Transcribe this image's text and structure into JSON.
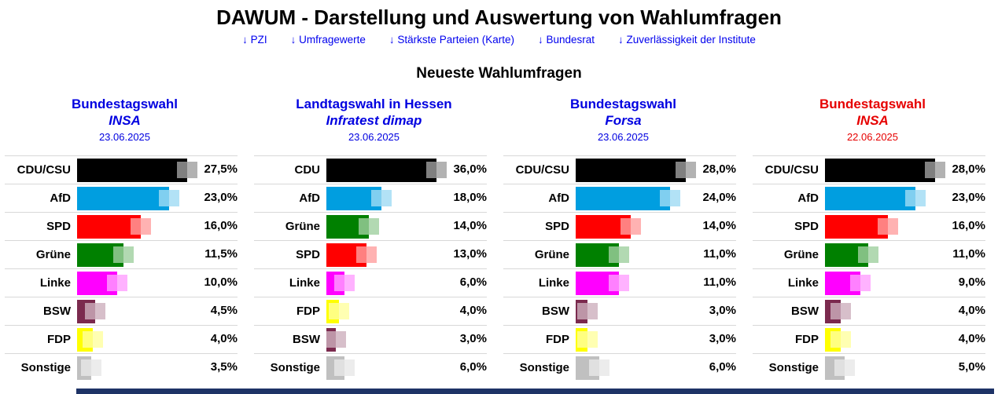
{
  "page": {
    "title": "DAWUM - Darstellung und Auswertung von Wahlumfragen",
    "nav_links": [
      "↓ PZI",
      "↓ Umfragewerte",
      "↓ Stärkste Parteien (Karte)",
      "↓ Bundesrat",
      "↓ Zuverlässigkeit der Institute"
    ],
    "section_title": "Neueste Wahlumfragen"
  },
  "colors": {
    "link_blue": "#0000EE",
    "heading_blue": "#0000E0",
    "heading_red": "#E60000",
    "row_separator": "#d8d8d8",
    "bottom_strip": "#1e3366"
  },
  "chart_data": [
    {
      "type": "bar",
      "title": "Bundestagswahl",
      "institute": "INSA",
      "date": "23.06.2025",
      "title_color": "#0000E0",
      "categories": [
        "CDU/CSU",
        "AfD",
        "SPD",
        "Grüne",
        "Linke",
        "BSW",
        "FDP",
        "Sonstige"
      ],
      "values": [
        27.5,
        23.0,
        16.0,
        11.5,
        10.0,
        4.5,
        4.0,
        3.5
      ],
      "value_labels": [
        "27,5%",
        "23,0%",
        "16,0%",
        "11,5%",
        "10,0%",
        "4,5%",
        "4,0%",
        "3,5%"
      ],
      "bar_colors": [
        "#000000",
        "#009EE0",
        "#FF0000",
        "#008000",
        "#FF00FF",
        "#7B2A4E",
        "#FFFF00",
        "#C0C0C0"
      ],
      "xlim": [
        0,
        27.5
      ]
    },
    {
      "type": "bar",
      "title": "Landtagswahl in Hessen",
      "institute": "Infratest dimap",
      "date": "23.06.2025",
      "title_color": "#0000E0",
      "categories": [
        "CDU",
        "AfD",
        "Grüne",
        "SPD",
        "Linke",
        "FDP",
        "BSW",
        "Sonstige"
      ],
      "values": [
        36.0,
        18.0,
        14.0,
        13.0,
        6.0,
        4.0,
        3.0,
        6.0
      ],
      "value_labels": [
        "36,0%",
        "18,0%",
        "14,0%",
        "13,0%",
        "6,0%",
        "4,0%",
        "3,0%",
        "6,0%"
      ],
      "bar_colors": [
        "#000000",
        "#009EE0",
        "#008000",
        "#FF0000",
        "#FF00FF",
        "#FFFF00",
        "#7B2A4E",
        "#C0C0C0"
      ],
      "xlim": [
        0,
        36.0
      ]
    },
    {
      "type": "bar",
      "title": "Bundestagswahl",
      "institute": "Forsa",
      "date": "23.06.2025",
      "title_color": "#0000E0",
      "categories": [
        "CDU/CSU",
        "AfD",
        "SPD",
        "Grüne",
        "Linke",
        "BSW",
        "FDP",
        "Sonstige"
      ],
      "values": [
        28.0,
        24.0,
        14.0,
        11.0,
        11.0,
        3.0,
        3.0,
        6.0
      ],
      "value_labels": [
        "28,0%",
        "24,0%",
        "14,0%",
        "11,0%",
        "11,0%",
        "3,0%",
        "3,0%",
        "6,0%"
      ],
      "bar_colors": [
        "#000000",
        "#009EE0",
        "#FF0000",
        "#008000",
        "#FF00FF",
        "#7B2A4E",
        "#FFFF00",
        "#C0C0C0"
      ],
      "xlim": [
        0,
        28.0
      ]
    },
    {
      "type": "bar",
      "title": "Bundestagswahl",
      "institute": "INSA",
      "date": "22.06.2025",
      "title_color": "#E60000",
      "categories": [
        "CDU/CSU",
        "AfD",
        "SPD",
        "Grüne",
        "Linke",
        "BSW",
        "FDP",
        "Sonstige"
      ],
      "values": [
        28.0,
        23.0,
        16.0,
        11.0,
        9.0,
        4.0,
        4.0,
        5.0
      ],
      "value_labels": [
        "28,0%",
        "23,0%",
        "16,0%",
        "11,0%",
        "9,0%",
        "4,0%",
        "4,0%",
        "5,0%"
      ],
      "bar_colors": [
        "#000000",
        "#009EE0",
        "#FF0000",
        "#008000",
        "#FF00FF",
        "#7B2A4E",
        "#FFFF00",
        "#C0C0C0"
      ],
      "xlim": [
        0,
        28.0
      ]
    }
  ]
}
